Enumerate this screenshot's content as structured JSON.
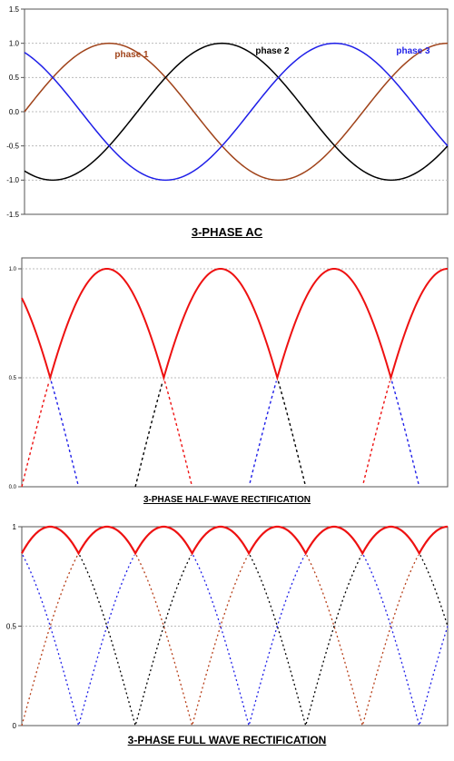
{
  "chart_data": [
    {
      "type": "line",
      "title": "3-PHASE AC",
      "ylim": [
        -1.5,
        1.5
      ],
      "xlim": [
        0,
        450
      ],
      "x_unit": "degrees",
      "y_ticks": [
        "1.5",
        "1.0",
        "0.5",
        "0.0",
        "-0.5",
        "-1.0",
        "-1.5"
      ],
      "grid": "horizontal dotted",
      "series": [
        {
          "name": "phase 1",
          "color": "#a0431a",
          "phase_shift_deg": 0,
          "x": [
            0,
            45,
            90,
            135,
            180,
            225,
            270,
            315,
            360,
            405,
            450
          ],
          "values": [
            0,
            0.71,
            1.0,
            0.71,
            0,
            -0.71,
            -1.0,
            -0.71,
            0,
            0.71,
            1.0
          ]
        },
        {
          "name": "phase 2",
          "color": "#000000",
          "phase_shift_deg": -120,
          "x": [
            0,
            30,
            120,
            210,
            300,
            390,
            450
          ],
          "values": [
            -0.87,
            -1.0,
            0,
            1.0,
            0,
            -1.0,
            -0.87
          ]
        },
        {
          "name": "phase 3",
          "color": "#1f1fe8",
          "phase_shift_deg": 120,
          "x": [
            0,
            30,
            120,
            210,
            300,
            390,
            450
          ],
          "values": [
            0.87,
            0.5,
            -0.5,
            -1.0,
            0.5,
            1.0,
            0.87
          ]
        }
      ]
    },
    {
      "type": "line",
      "title": "3-PHASE HALF-WAVE RECTIFICATION",
      "ylim": [
        0,
        1.05
      ],
      "xlim": [
        0,
        450
      ],
      "y_ticks": [
        "1.0",
        "0.5",
        "0.0"
      ],
      "grid": "horizontal dotted",
      "series": [
        {
          "name": "",
          "color": "#ee1111",
          "style": "solid",
          "role": "rectified output (max of phases)",
          "x": [
            0,
            30,
            90,
            150,
            210,
            270,
            330,
            390,
            450
          ],
          "values": [
            0.87,
            0.5,
            1.0,
            0.5,
            1.0,
            0.5,
            1.0,
            0.5,
            0.87
          ]
        },
        {
          "name": "",
          "color": "#ee1111",
          "style": "dashed",
          "role": "phase 1 hidden part",
          "phase_shift_deg": 0
        },
        {
          "name": "",
          "color": "#000000",
          "style": "dashed",
          "role": "phase 2 hidden part",
          "phase_shift_deg": -120
        },
        {
          "name": "",
          "color": "#1f1fe8",
          "style": "dashed",
          "role": "phase 3 hidden part",
          "phase_shift_deg": 120
        }
      ]
    },
    {
      "type": "line",
      "title": "3-PHASE FULL WAVE RECTIFICATION",
      "ylim": [
        0,
        1.0
      ],
      "xlim": [
        0,
        450
      ],
      "y_ticks": [
        "1",
        "0.5",
        "0"
      ],
      "grid": "horizontal dotted",
      "series": [
        {
          "name": "",
          "color": "#ee1111",
          "style": "solid",
          "role": "rectified output (max of |phases|)",
          "x": [
            0,
            30,
            60,
            90,
            120,
            150,
            180,
            210,
            240,
            270,
            300,
            330,
            360,
            390,
            420,
            450
          ],
          "values": [
            0.87,
            1.0,
            0.87,
            1.0,
            0.87,
            1.0,
            0.87,
            1.0,
            0.87,
            1.0,
            0.87,
            1.0,
            0.87,
            1.0,
            0.87,
            1.0
          ]
        },
        {
          "name": "",
          "color": "#b8401a",
          "style": "dashed",
          "role": "|phase 1|",
          "phase_shift_deg": 0
        },
        {
          "name": "",
          "color": "#000000",
          "style": "dashed",
          "role": "|phase 2|",
          "phase_shift_deg": -120
        },
        {
          "name": "",
          "color": "#1f1fe8",
          "style": "dashed",
          "role": "|phase 3|",
          "phase_shift_deg": 120
        }
      ]
    }
  ]
}
